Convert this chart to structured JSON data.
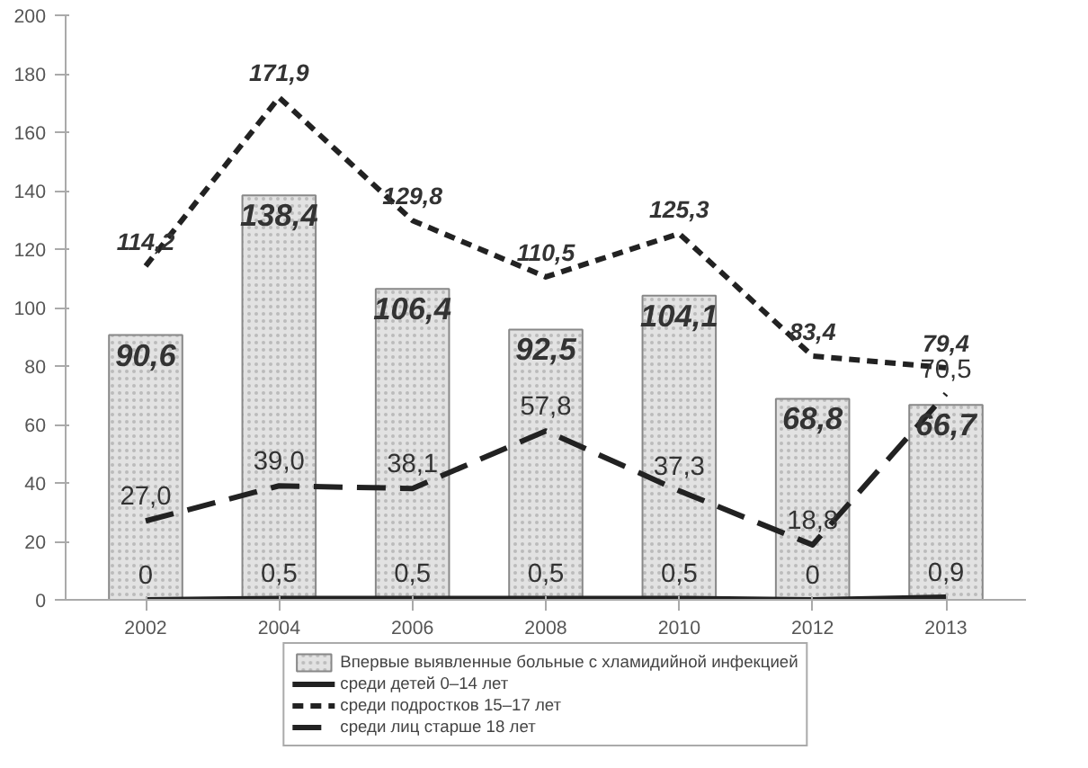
{
  "chart_data": {
    "type": "bar",
    "categories": [
      "2002",
      "2004",
      "2006",
      "2008",
      "2010",
      "2012",
      "2013"
    ],
    "ylim": [
      0,
      200
    ],
    "yticks": [
      0,
      20,
      40,
      60,
      80,
      100,
      120,
      140,
      160,
      180,
      200
    ],
    "legend": "bottom",
    "series": [
      {
        "name": "Впервые выявленные больные с хламидийной инфекцией",
        "color": "#e2e2e2",
        "values": [
          90.6,
          138.4,
          106.4,
          92.5,
          104.1,
          68.8,
          66.7
        ],
        "value_labels": [
          "90,6",
          "138,4",
          "106,4",
          "92,5",
          "104,1",
          "68,8",
          "66,7"
        ]
      },
      {
        "name": "среди детей 0–14 лет",
        "type": "line",
        "line_style": "solid",
        "color": "#222222",
        "values": [
          0,
          0.5,
          0.5,
          0.5,
          0.5,
          0,
          0.9
        ],
        "value_labels": [
          "0",
          "0,5",
          "0,5",
          "0,5",
          "0,5",
          "0",
          "0,9"
        ]
      },
      {
        "name": "среди подростков 15–17 лет",
        "type": "line",
        "line_style": "dashed",
        "color": "#222222",
        "values": [
          114.2,
          171.9,
          129.8,
          110.5,
          125.3,
          83.4,
          79.4
        ],
        "value_labels": [
          "114,2",
          "171,9",
          "129,8",
          "110,5",
          "125,3",
          "83,4",
          "79,4"
        ]
      },
      {
        "name": "среди лиц старше 18 лет",
        "type": "line",
        "line_style": "long_dash",
        "color": "#222222",
        "values": [
          27.0,
          39.0,
          38.1,
          57.8,
          37.3,
          18.8,
          70.5
        ],
        "value_labels": [
          "27,0",
          "39,0",
          "38,1",
          "57,8",
          "37,3",
          "18,8",
          "70,5"
        ]
      }
    ]
  }
}
